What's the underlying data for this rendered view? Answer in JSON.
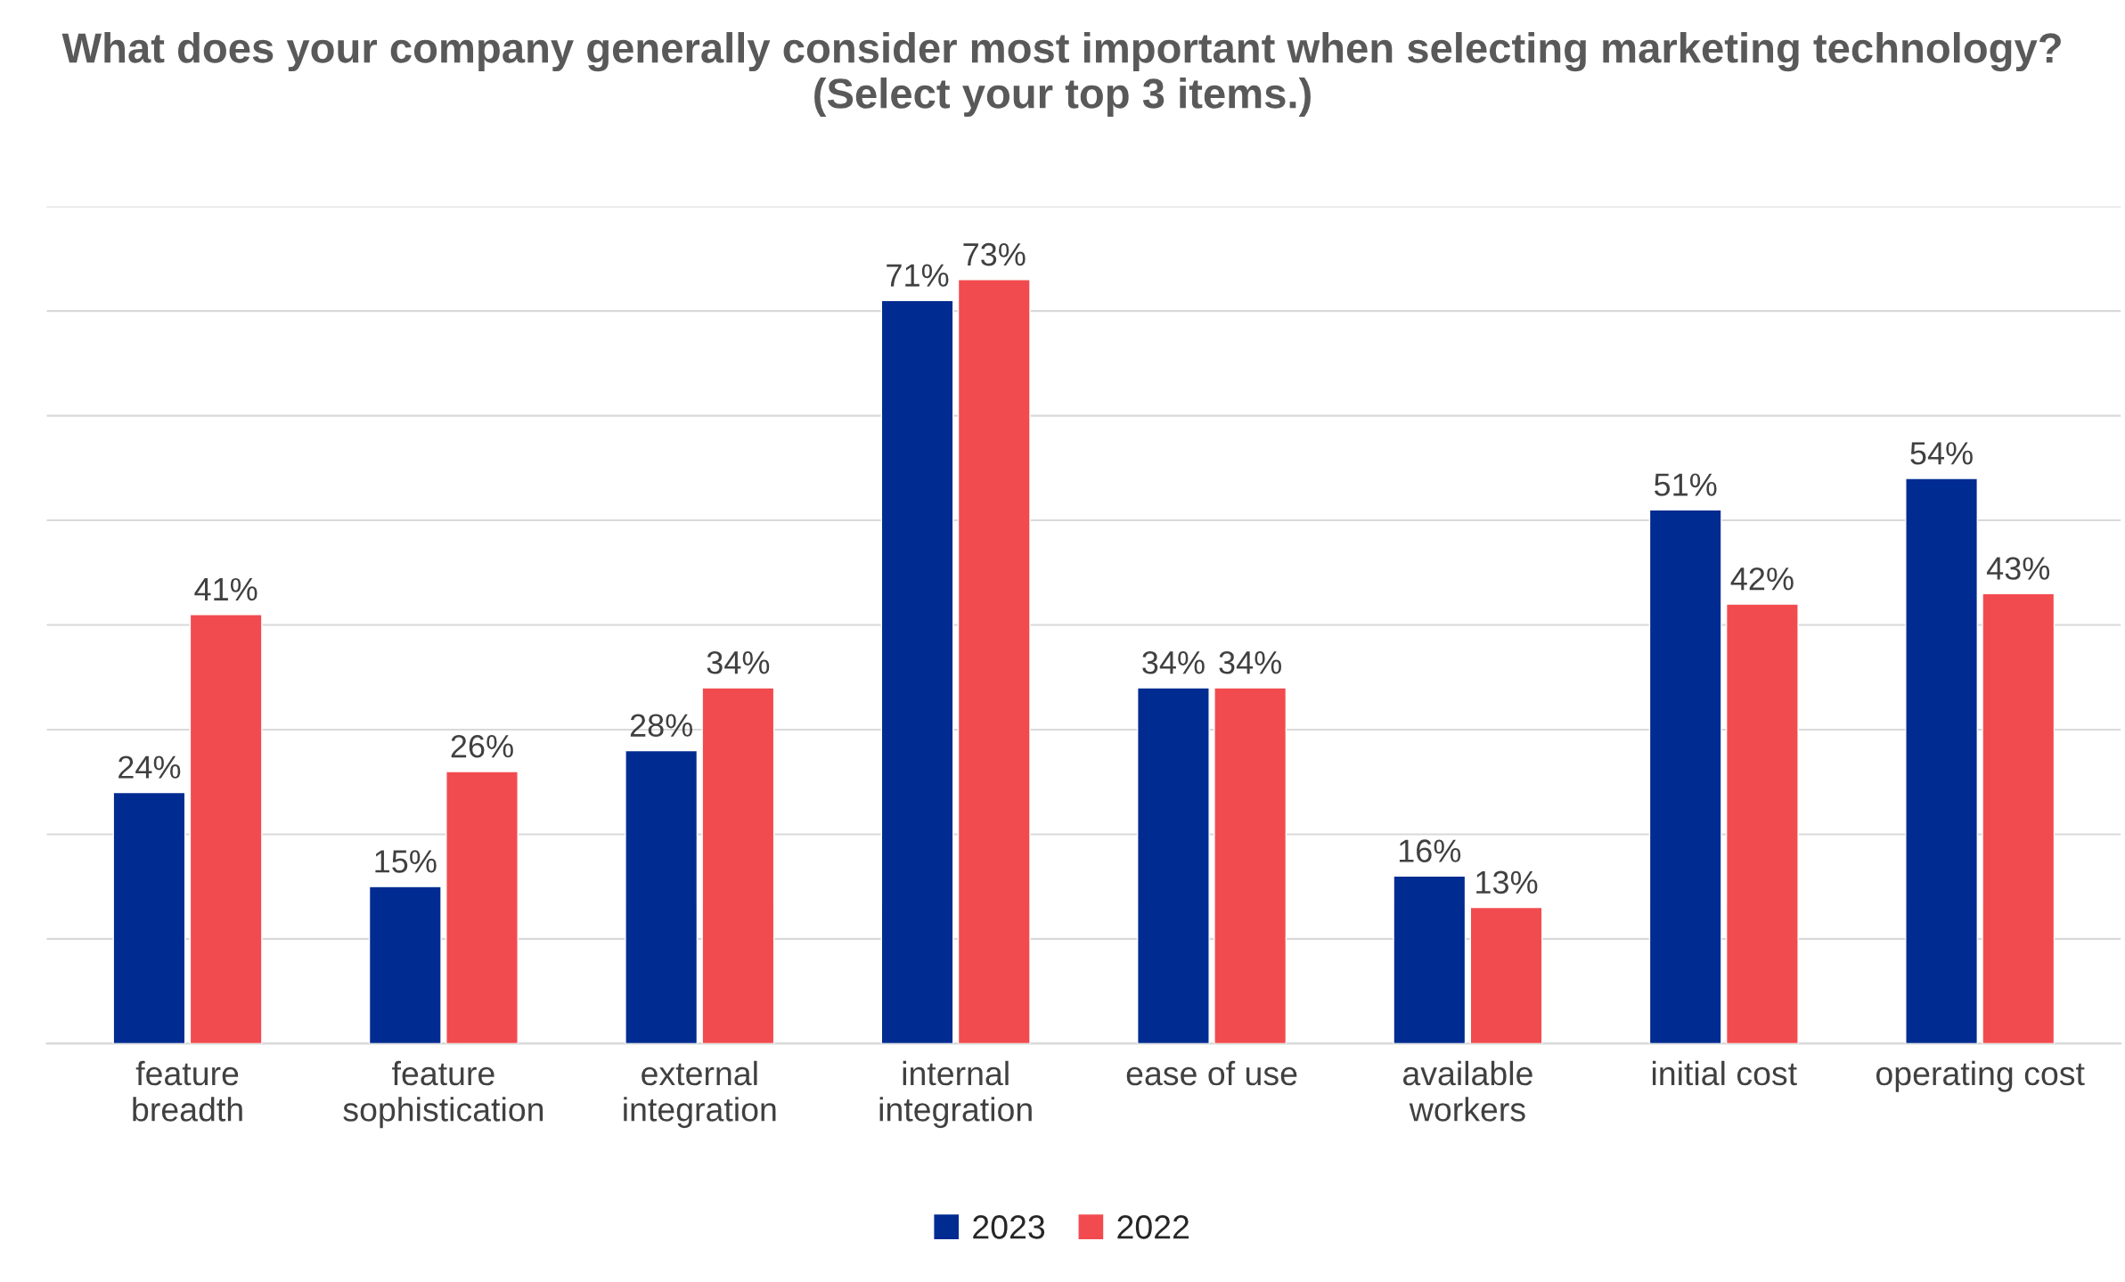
{
  "chart_data": {
    "type": "bar",
    "title": "What does your company generally consider most important when selecting marketing technology? (Select your top 3 items.)",
    "categories": [
      "feature\nbreadth",
      "feature\nsophistication",
      "external\nintegration",
      "internal\nintegration",
      "ease of use",
      "available\nworkers",
      "initial cost",
      "operating cost"
    ],
    "series": [
      {
        "name": "2023",
        "color": "#002b91",
        "values": [
          24,
          15,
          28,
          71,
          34,
          16,
          51,
          54
        ],
        "value_labels": [
          "24%",
          "15%",
          "28%",
          "71%",
          "34%",
          "16%",
          "51%",
          "54%"
        ]
      },
      {
        "name": "2022",
        "color": "#f24b4f",
        "values": [
          41,
          26,
          34,
          73,
          34,
          13,
          42,
          43
        ],
        "value_labels": [
          "41%",
          "26%",
          "34%",
          "73%",
          "34%",
          "13%",
          "42%",
          "43%"
        ]
      }
    ],
    "ylim": [
      0,
      80
    ],
    "yticks": [
      {
        "value": 0,
        "label": null
      },
      {
        "value": 10,
        "label": null
      },
      {
        "value": 20,
        "label": null
      },
      {
        "value": 30,
        "label": null
      },
      {
        "value": 40,
        "label": null
      },
      {
        "value": 50,
        "label": null
      },
      {
        "value": 60,
        "label": null
      },
      {
        "value": 70,
        "label": null
      },
      {
        "value": 80,
        "label": null
      }
    ],
    "grid": "y",
    "legend": "bottom",
    "tick_labels": "x"
  }
}
